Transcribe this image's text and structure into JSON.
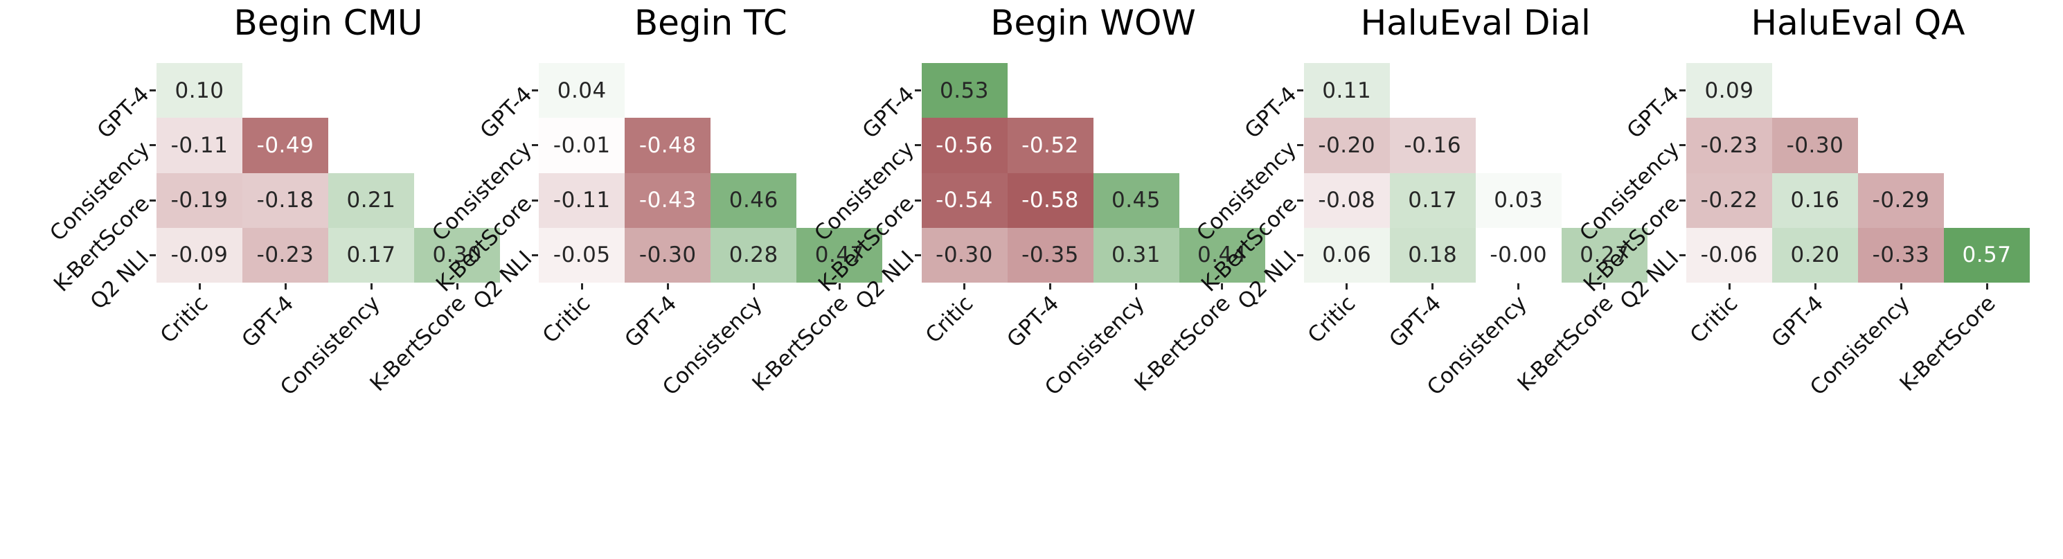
{
  "colors": {
    "background": "#ffffff",
    "negative_end": "#a55659",
    "zero": "#ffffff",
    "positive_end": "#5b9e59",
    "cell_text_dark": "#262626",
    "cell_text_light": "#ffffff",
    "axis_text": "#111111",
    "tick_mark": "#262626"
  },
  "chart_data": [
    {
      "type": "heatmap",
      "title": "Begin CMU",
      "rows": [
        "GPT-4",
        "Consistency",
        "K-BertScore",
        "Q2 NLI"
      ],
      "cols": [
        "Critic",
        "GPT-4",
        "Consistency",
        "K-BertScore"
      ],
      "value_domain": [
        -0.6,
        0.6
      ],
      "matrix": [
        [
          "0.10"
        ],
        [
          "-0.11",
          "-0.49"
        ],
        [
          "-0.19",
          "-0.18",
          "0.21"
        ],
        [
          "-0.09",
          "-0.23",
          "0.17",
          "0.30"
        ]
      ]
    },
    {
      "type": "heatmap",
      "title": "Begin TC",
      "rows": [
        "GPT-4",
        "Consistency",
        "K-BertScore",
        "Q2 NLI"
      ],
      "cols": [
        "Critic",
        "GPT-4",
        "Consistency",
        "K-BertScore"
      ],
      "value_domain": [
        -0.6,
        0.6
      ],
      "matrix": [
        [
          "0.04"
        ],
        [
          "-0.01",
          "-0.48"
        ],
        [
          "-0.11",
          "-0.43",
          "0.46"
        ],
        [
          "-0.05",
          "-0.30",
          "0.28",
          "0.47"
        ]
      ]
    },
    {
      "type": "heatmap",
      "title": "Begin WOW",
      "rows": [
        "GPT-4",
        "Consistency",
        "K-BertScore",
        "Q2 NLI"
      ],
      "cols": [
        "Critic",
        "GPT-4",
        "Consistency",
        "K-BertScore"
      ],
      "value_domain": [
        -0.6,
        0.6
      ],
      "matrix": [
        [
          "0.53"
        ],
        [
          "-0.56",
          "-0.52"
        ],
        [
          "-0.54",
          "-0.58",
          "0.45"
        ],
        [
          "-0.30",
          "-0.35",
          "0.31",
          "0.44"
        ]
      ]
    },
    {
      "type": "heatmap",
      "title": "HaluEval Dial",
      "rows": [
        "GPT-4",
        "Consistency",
        "K-BertScore",
        "Q2 NLI"
      ],
      "cols": [
        "Critic",
        "GPT-4",
        "Consistency",
        "K-BertScore"
      ],
      "value_domain": [
        -0.6,
        0.6
      ],
      "matrix": [
        [
          "0.11"
        ],
        [
          "-0.20",
          "-0.16"
        ],
        [
          "-0.08",
          "0.17",
          "0.03"
        ],
        [
          "0.06",
          "0.18",
          "-0.00",
          "0.27"
        ]
      ]
    },
    {
      "type": "heatmap",
      "title": "HaluEval QA",
      "rows": [
        "GPT-4",
        "Consistency",
        "K-BertScore",
        "Q2 NLI"
      ],
      "cols": [
        "Critic",
        "GPT-4",
        "Consistency",
        "K-BertScore"
      ],
      "value_domain": [
        -0.6,
        0.6
      ],
      "matrix": [
        [
          "0.09"
        ],
        [
          "-0.23",
          "-0.30"
        ],
        [
          "-0.22",
          "0.16",
          "-0.29"
        ],
        [
          "-0.06",
          "0.20",
          "-0.33",
          "0.57"
        ]
      ]
    }
  ]
}
